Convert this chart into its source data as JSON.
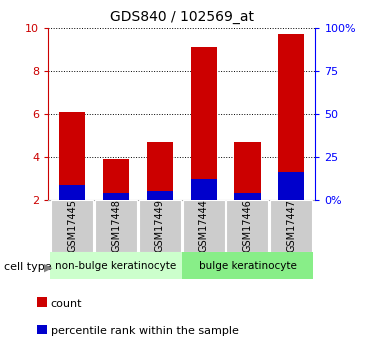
{
  "title": "GDS840 / 102569_at",
  "samples": [
    "GSM17445",
    "GSM17448",
    "GSM17449",
    "GSM17444",
    "GSM17446",
    "GSM17447"
  ],
  "count_values": [
    6.1,
    3.9,
    4.7,
    9.1,
    4.7,
    9.7
  ],
  "percentile_values": [
    2.7,
    2.35,
    2.4,
    3.0,
    2.35,
    3.3
  ],
  "baseline": 2.0,
  "ylim_left": [
    2,
    10
  ],
  "yticks_left": [
    2,
    4,
    6,
    8,
    10
  ],
  "ytick_labels_left": [
    "2",
    "4",
    "6",
    "8",
    "10"
  ],
  "ytick_labels_right": [
    "0%",
    "25",
    "50",
    "75",
    "100%"
  ],
  "bar_width": 0.6,
  "count_color": "#cc0000",
  "percentile_color": "#0000cc",
  "group1_label": "non-bulge keratinocyte",
  "group2_label": "bulge keratinocyte",
  "group1_color": "#ccffcc",
  "group2_color": "#88ee88",
  "cell_type_label": "cell type",
  "tick_area_color": "#cccccc",
  "background_color": "#ffffff",
  "legend_count_label": "count",
  "legend_pct_label": "percentile rank within the sample"
}
